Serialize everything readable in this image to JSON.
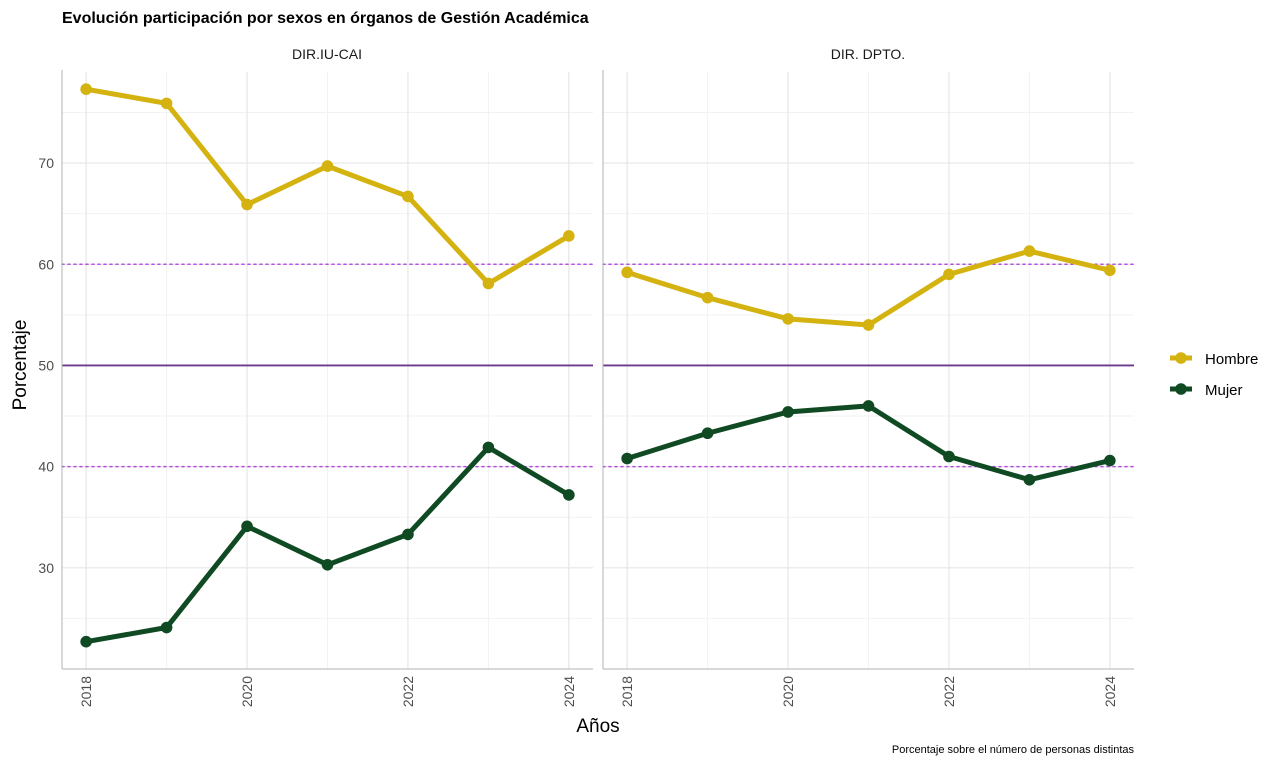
{
  "chart_data": {
    "type": "line",
    "title": "Evolución participación por sexos en órganos de Gestión Académica",
    "xlabel": "Años",
    "ylabel": "Porcentaje",
    "caption": "Porcentaje sobre el número de personas distintas",
    "x_ticks": [
      2018,
      2020,
      2022,
      2024
    ],
    "y_ticks": [
      30,
      40,
      50,
      60,
      70
    ],
    "xlim": [
      2017.7,
      2024.3
    ],
    "ylim": [
      20,
      79
    ],
    "grid": true,
    "legend_position": "right",
    "reference_lines": [
      {
        "y": 50,
        "style": "solid",
        "color": "#6b3a8a"
      },
      {
        "y": 60,
        "style": "dotted",
        "color": "#b44fe0"
      },
      {
        "y": 40,
        "style": "dotted",
        "color": "#b44fe0"
      }
    ],
    "series_styles": [
      {
        "name": "Hombre",
        "color": "#d4b20f"
      },
      {
        "name": "Mujer",
        "color": "#0f4a23"
      }
    ],
    "panels": [
      {
        "label": "DIR.IU-CAI",
        "x": [
          2018,
          2019,
          2020,
          2021,
          2022,
          2023,
          2024
        ],
        "series": [
          {
            "name": "Hombre",
            "values": [
              77.3,
              75.9,
              65.9,
              69.7,
              66.7,
              58.1,
              62.8
            ]
          },
          {
            "name": "Mujer",
            "values": [
              22.7,
              24.1,
              34.1,
              30.3,
              33.3,
              41.9,
              37.2
            ]
          }
        ]
      },
      {
        "label": "DIR. DPTO.",
        "x": [
          2018,
          2019,
          2020,
          2021,
          2022,
          2023,
          2024
        ],
        "series": [
          {
            "name": "Hombre",
            "values": [
              59.2,
              56.7,
              54.6,
              54.0,
              59.0,
              61.3,
              59.4
            ]
          },
          {
            "name": "Mujer",
            "values": [
              40.8,
              43.3,
              45.4,
              46.0,
              41.0,
              38.7,
              40.6
            ]
          }
        ]
      }
    ]
  }
}
